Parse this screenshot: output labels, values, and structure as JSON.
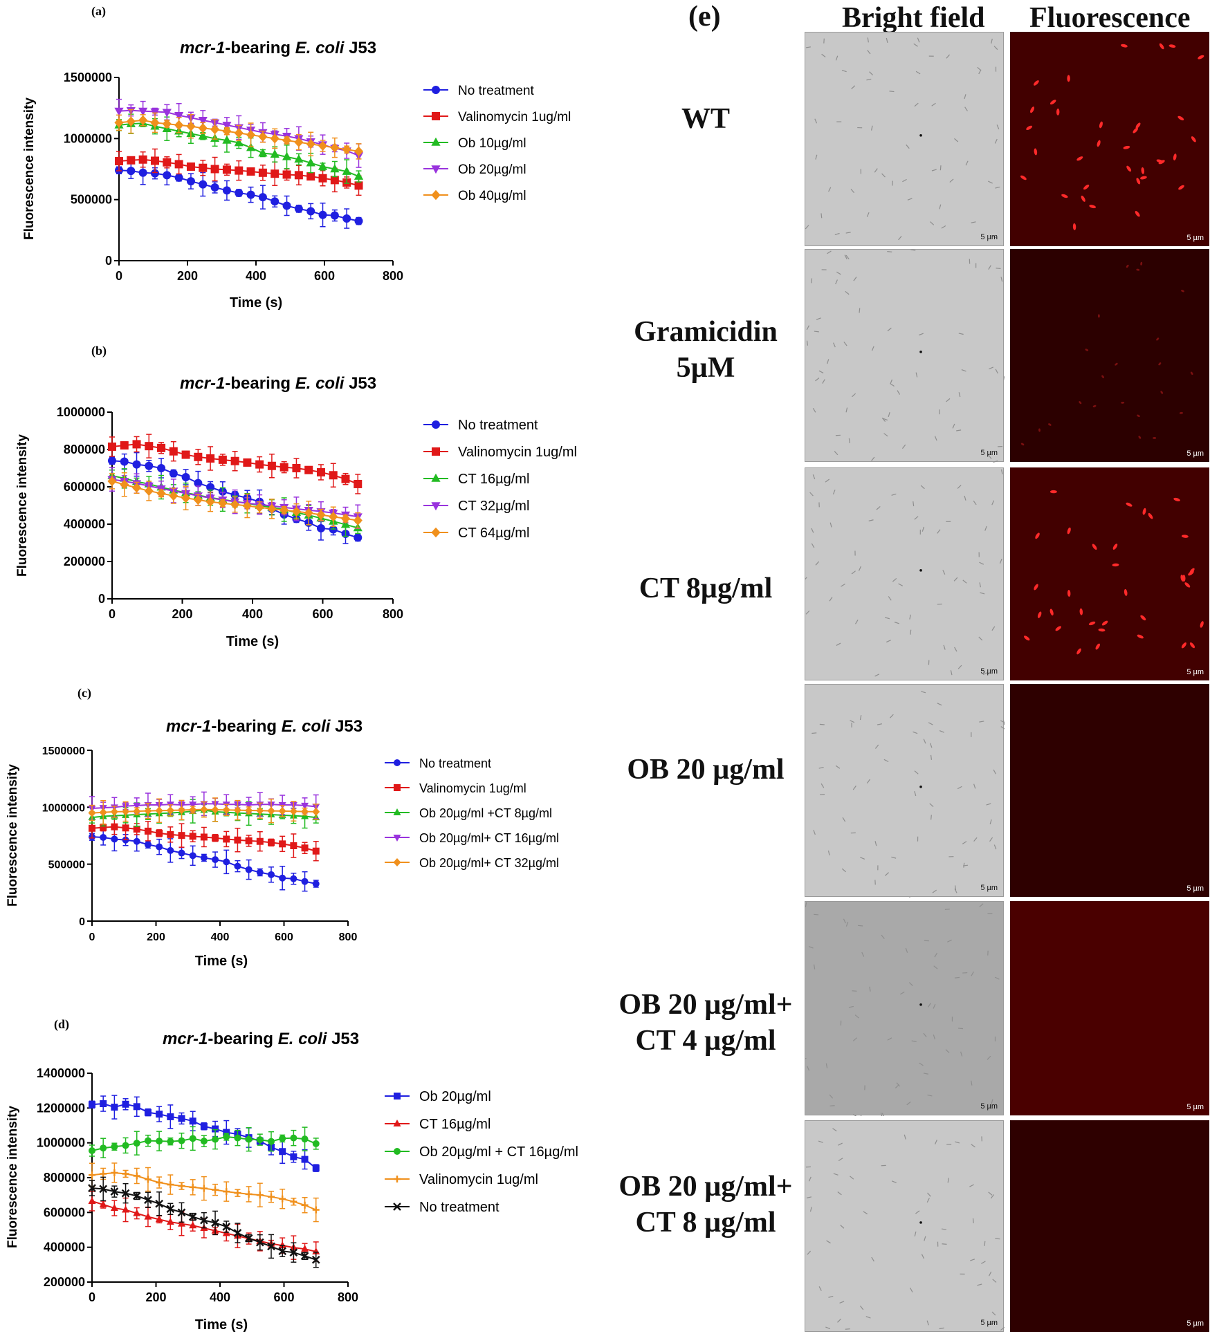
{
  "panel_e": {
    "label": "(e)",
    "col_headers": [
      "Bright field",
      "Fluorescence"
    ],
    "rows": [
      {
        "label": "WT",
        "fluor_level": "high"
      },
      {
        "label": "Gramicidin 5µM",
        "fluor_level": "low"
      },
      {
        "label": "CT 8µg/ml",
        "fluor_level": "high"
      },
      {
        "label": "OB 20 µg/ml",
        "fluor_level": "none"
      },
      {
        "label": "OB 20 µg/ml+ CT 4 µg/ml",
        "fluor_level": "none"
      },
      {
        "label": "OB 20 µg/ml+ CT 8 µg/ml",
        "fluor_level": "none"
      }
    ],
    "scale_bar": "5 µm"
  },
  "chart_data": [
    {
      "panel": "(a)",
      "type": "line",
      "title_italic": "mcr-1",
      "title_mid": "-bearing ",
      "title_italic2": "E. coli",
      "title_end": " J53",
      "xlabel": "Time (s)",
      "ylabel": "Fluorescence intensity",
      "xlim": [
        0,
        800
      ],
      "ylim": [
        0,
        1500000
      ],
      "xticks": [
        0,
        200,
        400,
        600,
        800
      ],
      "yticks": [
        0,
        500000,
        1000000,
        1500000
      ],
      "x": [
        0,
        35,
        70,
        105,
        140,
        175,
        210,
        245,
        280,
        315,
        350,
        385,
        420,
        455,
        490,
        525,
        560,
        595,
        630,
        665,
        700
      ],
      "series": [
        {
          "name": "No treatment",
          "color": "#1f1fe0",
          "marker": "circle",
          "values": [
            740000,
            735000,
            720000,
            715000,
            700000,
            680000,
            650000,
            625000,
            600000,
            575000,
            555000,
            540000,
            520000,
            485000,
            450000,
            425000,
            405000,
            375000,
            370000,
            345000,
            325000
          ]
        },
        {
          "name": "Valinomycin 1ug/ml",
          "color": "#e01818",
          "marker": "square",
          "values": [
            815000,
            822000,
            828000,
            818000,
            805000,
            790000,
            770000,
            760000,
            750000,
            745000,
            738000,
            730000,
            720000,
            712000,
            705000,
            700000,
            690000,
            675000,
            660000,
            640000,
            615000
          ]
        },
        {
          "name": "Ob 10µg/ml",
          "color": "#22bb22",
          "marker": "triangle",
          "values": [
            1110000,
            1120000,
            1125000,
            1100000,
            1080000,
            1060000,
            1040000,
            1020000,
            1000000,
            985000,
            965000,
            925000,
            880000,
            870000,
            850000,
            830000,
            800000,
            770000,
            750000,
            730000,
            690000
          ]
        },
        {
          "name": "Ob 20µg/ml",
          "color": "#9933dd",
          "marker": "triangle-down",
          "values": [
            1225000,
            1230000,
            1225000,
            1220000,
            1215000,
            1190000,
            1170000,
            1150000,
            1130000,
            1110000,
            1090000,
            1070000,
            1050000,
            1035000,
            1020000,
            1000000,
            975000,
            950000,
            920000,
            900000,
            860000
          ]
        },
        {
          "name": "Ob 40µg/ml",
          "color": "#f0901c",
          "marker": "diamond",
          "values": [
            1130000,
            1140000,
            1150000,
            1130000,
            1120000,
            1110000,
            1100000,
            1085000,
            1075000,
            1060000,
            1045000,
            1030000,
            1015000,
            1000000,
            985000,
            970000,
            955000,
            940000,
            925000,
            910000,
            895000
          ]
        }
      ]
    },
    {
      "panel": "(b)",
      "type": "line",
      "title_italic": "mcr-1",
      "title_mid": "-bearing ",
      "title_italic2": "E. coli",
      "title_end": " J53",
      "xlabel": "Time (s)",
      "ylabel": "Fluorescence intensity",
      "xlim": [
        0,
        800
      ],
      "ylim": [
        0,
        1000000
      ],
      "xticks": [
        0,
        200,
        400,
        600,
        800
      ],
      "yticks": [
        0,
        200000,
        400000,
        600000,
        800000,
        1000000
      ],
      "x": [
        0,
        35,
        70,
        105,
        140,
        175,
        210,
        245,
        280,
        315,
        350,
        385,
        420,
        455,
        490,
        525,
        560,
        595,
        630,
        665,
        700
      ],
      "series": [
        {
          "name": "No treatment",
          "color": "#1f1fe0",
          "marker": "circle",
          "values": [
            740000,
            735000,
            720000,
            712000,
            700000,
            672000,
            652000,
            620000,
            598000,
            575000,
            556000,
            540000,
            520000,
            482000,
            452000,
            428000,
            408000,
            378000,
            372000,
            348000,
            328000
          ]
        },
        {
          "name": "Valinomycin 1ug/ml",
          "color": "#e01818",
          "marker": "square",
          "values": [
            815000,
            822000,
            828000,
            818000,
            808000,
            790000,
            772000,
            760000,
            752000,
            745000,
            738000,
            730000,
            720000,
            712000,
            705000,
            700000,
            690000,
            678000,
            662000,
            642000,
            615000
          ]
        },
        {
          "name": "CT 16µg/ml",
          "color": "#22bb22",
          "marker": "triangle",
          "values": [
            660000,
            645000,
            628000,
            615000,
            598000,
            582000,
            568000,
            555000,
            542000,
            532000,
            522000,
            512000,
            500000,
            490000,
            478000,
            462000,
            448000,
            432000,
            415000,
            398000,
            380000
          ]
        },
        {
          "name": "CT 32µg/ml",
          "color": "#9933dd",
          "marker": "triangle-down",
          "values": [
            640000,
            630000,
            618000,
            605000,
            590000,
            578000,
            565000,
            552000,
            540000,
            530000,
            520000,
            512000,
            505000,
            498000,
            490000,
            482000,
            475000,
            468000,
            460000,
            450000,
            440000
          ]
        },
        {
          "name": "CT 64µg/ml",
          "color": "#f0901c",
          "marker": "diamond",
          "values": [
            630000,
            612000,
            595000,
            578000,
            565000,
            552000,
            540000,
            530000,
            520000,
            512000,
            505000,
            498000,
            490000,
            482000,
            475000,
            468000,
            460000,
            450000,
            440000,
            430000,
            420000
          ]
        }
      ]
    },
    {
      "panel": "(c)",
      "type": "line",
      "title_italic": "mcr-1",
      "title_mid": "-bearing ",
      "title_italic2": "E. coli",
      "title_end": " J53",
      "xlabel": "Time (s)",
      "ylabel": "Fluorescence intensity",
      "xlim": [
        0,
        800
      ],
      "ylim": [
        0,
        1500000
      ],
      "xticks": [
        0,
        200,
        400,
        600,
        800
      ],
      "yticks": [
        0,
        500000,
        1000000,
        1500000
      ],
      "x": [
        0,
        35,
        70,
        105,
        140,
        175,
        210,
        245,
        280,
        315,
        350,
        385,
        420,
        455,
        490,
        525,
        560,
        595,
        630,
        665,
        700
      ],
      "series": [
        {
          "name": "No treatment",
          "color": "#1f1fe0",
          "marker": "circle",
          "values": [
            740000,
            735000,
            720000,
            712000,
            700000,
            672000,
            652000,
            620000,
            598000,
            575000,
            556000,
            540000,
            520000,
            482000,
            452000,
            428000,
            408000,
            378000,
            372000,
            348000,
            328000
          ]
        },
        {
          "name": "Valinomycin 1ug/ml",
          "color": "#e01818",
          "marker": "square",
          "values": [
            815000,
            822000,
            828000,
            818000,
            808000,
            790000,
            772000,
            760000,
            752000,
            745000,
            738000,
            730000,
            720000,
            712000,
            705000,
            700000,
            690000,
            678000,
            662000,
            642000,
            615000
          ]
        },
        {
          "name": "Ob 20µg/ml +CT 8µg/ml",
          "color": "#22bb22",
          "marker": "triangle",
          "values": [
            910000,
            920000,
            925000,
            930000,
            935000,
            940000,
            945000,
            950000,
            955000,
            965000,
            975000,
            960000,
            955000,
            950000,
            945000,
            940000,
            935000,
            930000,
            925000,
            920000,
            910000
          ]
        },
        {
          "name": "Ob 20µg/ml+ CT 16µg/ml",
          "color": "#9933dd",
          "marker": "triangle-down",
          "values": [
            990000,
            995000,
            1000000,
            1010000,
            1015000,
            1020000,
            1020000,
            1025000,
            1020000,
            1025000,
            1030000,
            1030000,
            1025000,
            1025000,
            1020000,
            1025000,
            1025000,
            1020000,
            1020000,
            1015000,
            1005000
          ]
        },
        {
          "name": "Ob 20µg/ml+ CT 32µg/ml",
          "color": "#f0901c",
          "marker": "diamond",
          "values": [
            950000,
            955000,
            960000,
            962000,
            965000,
            968000,
            970000,
            972000,
            975000,
            978000,
            980000,
            978000,
            976000,
            974000,
            972000,
            970000,
            968000,
            966000,
            964000,
            962000,
            960000
          ]
        }
      ]
    },
    {
      "panel": "(d)",
      "type": "line",
      "title_italic": "mcr-1",
      "title_mid": "-bearing ",
      "title_italic2": "E. coli",
      "title_end": " J53",
      "xlabel": "Time (s)",
      "ylabel": "Fluorescence intensity",
      "xlim": [
        0,
        800
      ],
      "ylim": [
        200000,
        1400000
      ],
      "xticks": [
        0,
        200,
        400,
        600,
        800
      ],
      "yticks": [
        200000,
        400000,
        600000,
        800000,
        1000000,
        1200000,
        1400000
      ],
      "x": [
        0,
        35,
        70,
        105,
        140,
        175,
        210,
        245,
        280,
        315,
        350,
        385,
        420,
        455,
        490,
        525,
        560,
        595,
        630,
        665,
        700
      ],
      "series": [
        {
          "name": "Ob 20µg/ml",
          "color": "#1f1fe0",
          "marker": "square",
          "values": [
            1220000,
            1225000,
            1205000,
            1222000,
            1208000,
            1175000,
            1165000,
            1150000,
            1140000,
            1125000,
            1095000,
            1080000,
            1060000,
            1050000,
            1030000,
            1010000,
            975000,
            950000,
            920000,
            905000,
            855000
          ]
        },
        {
          "name": "CT 16µg/ml",
          "color": "#e01818",
          "marker": "triangle",
          "values": [
            665000,
            645000,
            625000,
            615000,
            595000,
            575000,
            560000,
            545000,
            535000,
            525000,
            510000,
            495000,
            480000,
            465000,
            450000,
            435000,
            420000,
            410000,
            398000,
            390000,
            375000
          ]
        },
        {
          "name": "Ob 20µg/ml + CT 16µg/ml",
          "color": "#22bb22",
          "marker": "circle",
          "values": [
            955000,
            970000,
            978000,
            985000,
            998000,
            1012000,
            1010000,
            1008000,
            1012000,
            1025000,
            1010000,
            1020000,
            1035000,
            1028000,
            1020000,
            1018000,
            1008000,
            1025000,
            1028000,
            1022000,
            995000
          ]
        },
        {
          "name": "Valinomycin 1ug/ml",
          "color": "#f0901c",
          "marker": "plus",
          "values": [
            815000,
            822000,
            828000,
            822000,
            810000,
            790000,
            772000,
            760000,
            752000,
            745000,
            738000,
            730000,
            720000,
            712000,
            705000,
            700000,
            690000,
            678000,
            662000,
            642000,
            615000
          ]
        },
        {
          "name": "No treatment",
          "color": "#111111",
          "marker": "cross",
          "values": [
            740000,
            735000,
            720000,
            710000,
            695000,
            672000,
            650000,
            620000,
            600000,
            575000,
            555000,
            540000,
            518000,
            482000,
            452000,
            428000,
            405000,
            378000,
            370000,
            350000,
            328000
          ]
        }
      ]
    }
  ]
}
